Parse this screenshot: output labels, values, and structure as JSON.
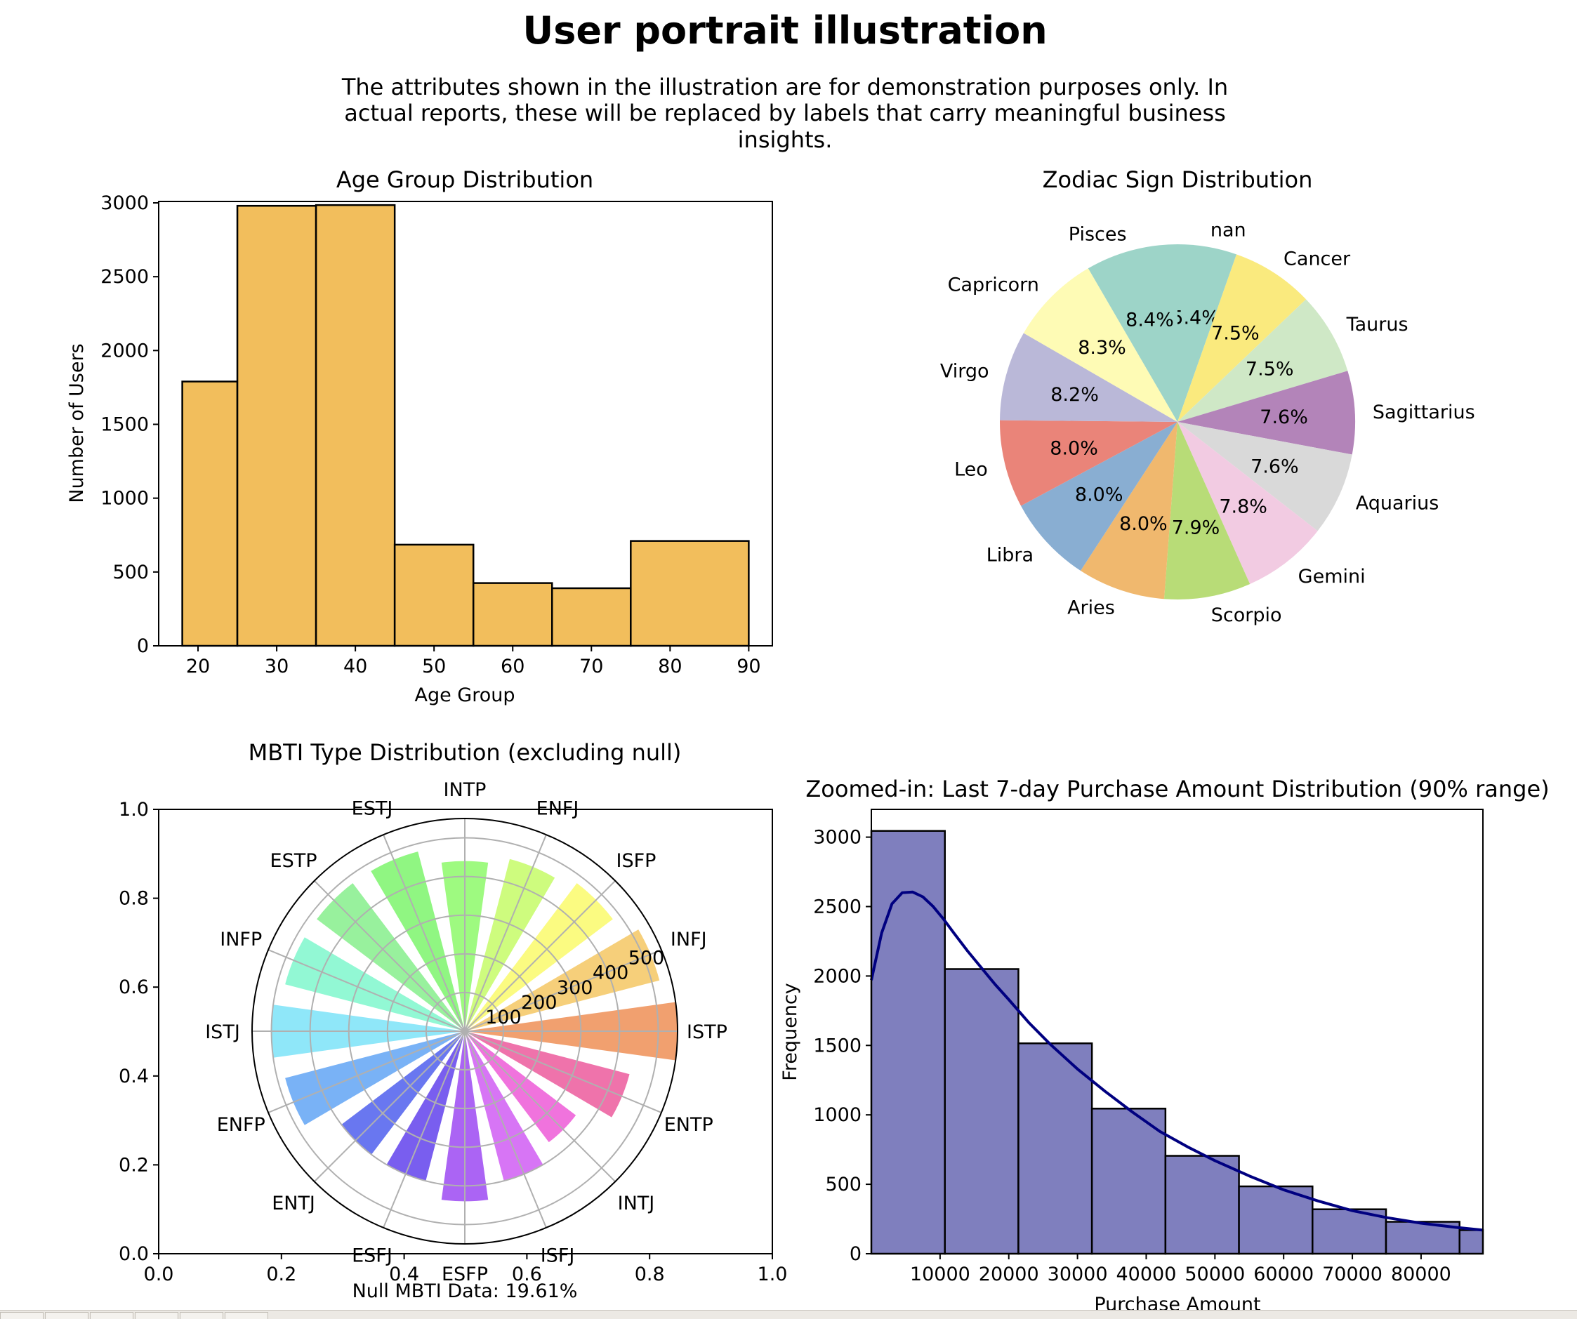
{
  "page": {
    "title": "User portrait illustration",
    "subtitle_lines": [
      "The attributes shown in the illustration are for demonstration purposes only. In",
      "actual reports, these will be replaced by labels that carry meaningful business",
      "insights."
    ]
  },
  "chart_data": [
    {
      "type": "bar",
      "title": "Age Group Distribution",
      "xlabel": "Age Group",
      "ylabel": "Number of Users",
      "bins": [
        [
          18,
          25
        ],
        [
          25,
          35
        ],
        [
          35,
          45
        ],
        [
          45,
          55
        ],
        [
          55,
          65
        ],
        [
          65,
          75
        ],
        [
          75,
          90
        ]
      ],
      "values": [
        1790,
        2980,
        2985,
        685,
        425,
        390,
        710
      ],
      "xlim": [
        15,
        93
      ],
      "ylim": [
        0,
        3000
      ],
      "xticks": [
        20,
        30,
        40,
        50,
        60,
        70,
        80,
        90
      ],
      "yticks": [
        0,
        500,
        1000,
        1500,
        2000,
        2500,
        3000
      ],
      "color": "#f2be5c",
      "edgecolor": "#000000"
    },
    {
      "type": "pie",
      "title": "Zodiac Sign Distribution",
      "labels": [
        "nan",
        "Cancer",
        "Taurus",
        "Sagittarius",
        "Aquarius",
        "Gemini",
        "Scorpio",
        "Aries",
        "Libra",
        "Leo",
        "Virgo",
        "Capricorn",
        "Pisces"
      ],
      "values": [
        5.4,
        7.5,
        7.5,
        7.6,
        7.6,
        7.8,
        7.9,
        8.0,
        8.0,
        8.0,
        8.2,
        8.3,
        8.4
      ],
      "pct_labels": [
        "5.4%",
        "7.5%",
        "7.5%",
        "7.6%",
        "7.6%",
        "7.8%",
        "7.9%",
        "8.0%",
        "8.0%",
        "8.0%",
        "8.2%",
        "8.3%",
        "8.4%"
      ],
      "colors": [
        "#9dd4c8",
        "#faea7e",
        "#cfe8c6",
        "#b384b9",
        "#d9d9d9",
        "#f2cbe2",
        "#b8dc77",
        "#f0b86e",
        "#89aed2",
        "#ea8479",
        "#bab8d8",
        "#fefbb5",
        "#9dd4c8"
      ],
      "startangle": 90,
      "direction": "clockwise"
    },
    {
      "type": "polar_bar",
      "title": "MBTI Type Distribution (excluding null)",
      "categories": [
        "ISTP",
        "INFJ",
        "ISFP",
        "ENFJ",
        "INTP",
        "ESTJ",
        "ESTP",
        "INFP",
        "ISTJ",
        "ENFP",
        "ENTJ",
        "ESFJ",
        "ESFP",
        "ISFJ",
        "INTJ",
        "ENTP"
      ],
      "values": [
        550,
        520,
        480,
        460,
        440,
        480,
        480,
        480,
        500,
        480,
        400,
        400,
        440,
        400,
        360,
        440
      ],
      "colors": [
        "#ee8f56",
        "#f5c763",
        "#fafa6b",
        "#c5fb67",
        "#8df96a",
        "#7df46c",
        "#86ef8c",
        "#7ff7cd",
        "#7be3f8",
        "#62a4f4",
        "#4f5fed",
        "#6242ec",
        "#9c49f2",
        "#d05df3",
        "#ed5ad7",
        "#ec5a9c"
      ],
      "rticks": [
        100,
        200,
        300,
        400,
        500
      ],
      "rmax": 550,
      "frame_xticks": [
        "0.0",
        "0.2",
        "0.4",
        "0.6",
        "0.8",
        "1.0"
      ],
      "frame_yticks": [
        "0.0",
        "0.2",
        "0.4",
        "0.6",
        "0.8",
        "1.0"
      ],
      "note": "Null MBTI Data: 19.61%"
    },
    {
      "type": "bar",
      "title": "Zoomed-in: Last 7-day Purchase Amount Distribution (90% range)",
      "xlabel": "Purchase Amount",
      "ylabel": "Frequency",
      "bin_edges": [
        0,
        10700,
        21400,
        32100,
        42800,
        53500,
        64200,
        74900,
        85600,
        89000
      ],
      "values": [
        3045,
        2050,
        1515,
        1045,
        705,
        485,
        320,
        230,
        170
      ],
      "kde_x": [
        0,
        1500,
        3000,
        4500,
        6000,
        7500,
        9000,
        10500,
        12000,
        14000,
        16000,
        18000,
        20000,
        23000,
        26000,
        30000,
        34000,
        38000,
        42000,
        46000,
        50000,
        55000,
        60000,
        65000,
        70000,
        75000,
        80000,
        85000,
        89000
      ],
      "kde_y": [
        1970,
        2310,
        2520,
        2600,
        2605,
        2570,
        2500,
        2410,
        2310,
        2180,
        2060,
        1940,
        1830,
        1660,
        1510,
        1330,
        1170,
        1020,
        880,
        770,
        670,
        560,
        460,
        380,
        310,
        260,
        220,
        190,
        170
      ],
      "xlim": [
        0,
        89000
      ],
      "ylim": [
        0,
        3200
      ],
      "xticks": [
        10000,
        20000,
        30000,
        40000,
        50000,
        60000,
        70000,
        80000
      ],
      "yticks": [
        0,
        500,
        1000,
        1500,
        2000,
        2500,
        3000
      ],
      "color": "#7f7fbe",
      "edgecolor": "#000000",
      "line_color": "#000080"
    }
  ]
}
